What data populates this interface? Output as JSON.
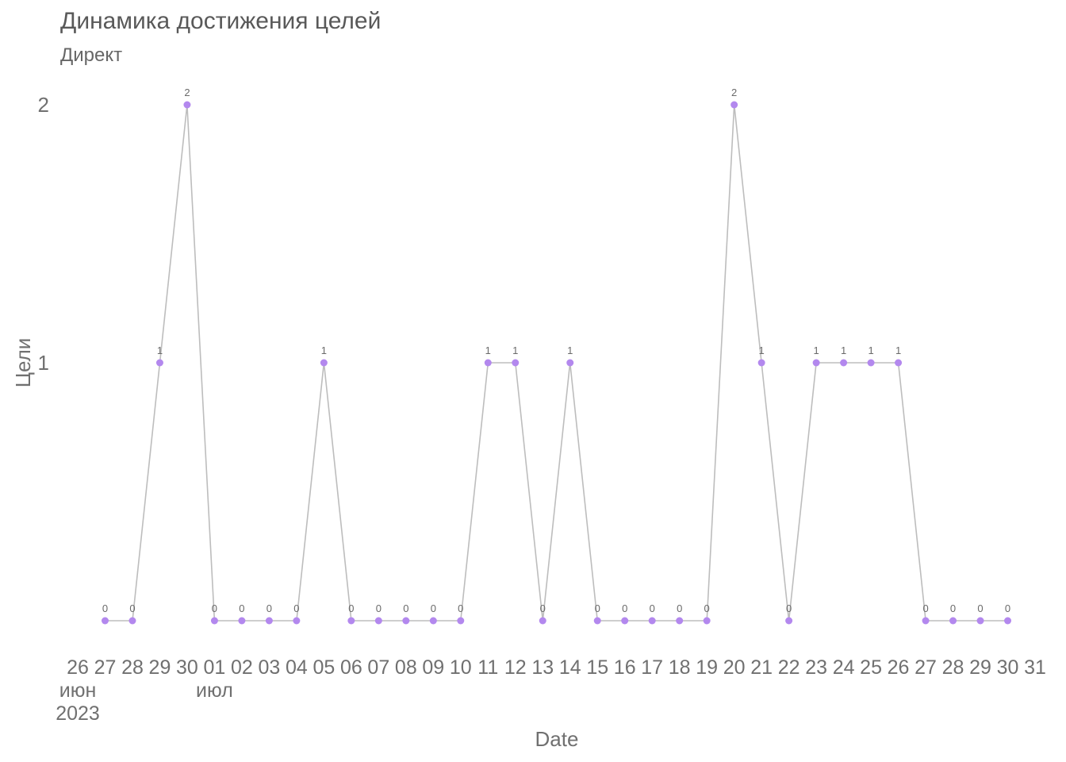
{
  "chart_data": {
    "type": "line",
    "title": "Динамика достижения целей",
    "subtitle": "Директ",
    "xlabel": "Date",
    "ylabel": "Цели",
    "xlim": [
      "2023-06-26",
      "2023-07-31"
    ],
    "ylim": [
      0,
      2
    ],
    "grid": false,
    "line_color": "#bdbdbd",
    "point_color": "#b388ee",
    "x_tick_labels": [
      {
        "date": "2023-06-26",
        "label": "26",
        "sub": [
          "июн",
          "2023"
        ]
      },
      {
        "date": "2023-06-27",
        "label": "27"
      },
      {
        "date": "2023-06-28",
        "label": "28"
      },
      {
        "date": "2023-06-29",
        "label": "29"
      },
      {
        "date": "2023-06-30",
        "label": "30"
      },
      {
        "date": "2023-07-01",
        "label": "01",
        "sub": [
          "июл"
        ]
      },
      {
        "date": "2023-07-02",
        "label": "02"
      },
      {
        "date": "2023-07-03",
        "label": "03"
      },
      {
        "date": "2023-07-04",
        "label": "04"
      },
      {
        "date": "2023-07-05",
        "label": "05"
      },
      {
        "date": "2023-07-06",
        "label": "06"
      },
      {
        "date": "2023-07-07",
        "label": "07"
      },
      {
        "date": "2023-07-08",
        "label": "08"
      },
      {
        "date": "2023-07-09",
        "label": "09"
      },
      {
        "date": "2023-07-10",
        "label": "10"
      },
      {
        "date": "2023-07-11",
        "label": "11"
      },
      {
        "date": "2023-07-12",
        "label": "12"
      },
      {
        "date": "2023-07-13",
        "label": "13"
      },
      {
        "date": "2023-07-14",
        "label": "14"
      },
      {
        "date": "2023-07-15",
        "label": "15"
      },
      {
        "date": "2023-07-16",
        "label": "16"
      },
      {
        "date": "2023-07-17",
        "label": "17"
      },
      {
        "date": "2023-07-18",
        "label": "18"
      },
      {
        "date": "2023-07-19",
        "label": "19"
      },
      {
        "date": "2023-07-20",
        "label": "20"
      },
      {
        "date": "2023-07-21",
        "label": "21"
      },
      {
        "date": "2023-07-22",
        "label": "22"
      },
      {
        "date": "2023-07-23",
        "label": "23"
      },
      {
        "date": "2023-07-24",
        "label": "24"
      },
      {
        "date": "2023-07-25",
        "label": "25"
      },
      {
        "date": "2023-07-26",
        "label": "26"
      },
      {
        "date": "2023-07-27",
        "label": "27"
      },
      {
        "date": "2023-07-28",
        "label": "28"
      },
      {
        "date": "2023-07-29",
        "label": "29"
      },
      {
        "date": "2023-07-30",
        "label": "30"
      },
      {
        "date": "2023-07-31",
        "label": "31"
      }
    ],
    "y_ticks": [
      1,
      2
    ],
    "x": [
      "2023-06-27",
      "2023-06-28",
      "2023-06-29",
      "2023-06-30",
      "2023-07-01",
      "2023-07-02",
      "2023-07-03",
      "2023-07-04",
      "2023-07-05",
      "2023-07-06",
      "2023-07-07",
      "2023-07-08",
      "2023-07-09",
      "2023-07-10",
      "2023-07-11",
      "2023-07-12",
      "2023-07-13",
      "2023-07-14",
      "2023-07-15",
      "2023-07-16",
      "2023-07-17",
      "2023-07-18",
      "2023-07-19",
      "2023-07-20",
      "2023-07-21",
      "2023-07-22",
      "2023-07-23",
      "2023-07-24",
      "2023-07-25",
      "2023-07-26",
      "2023-07-27",
      "2023-07-28",
      "2023-07-29",
      "2023-07-30"
    ],
    "values": [
      0,
      0,
      1,
      2,
      0,
      0,
      0,
      0,
      1,
      0,
      0,
      0,
      0,
      0,
      1,
      1,
      0,
      1,
      0,
      0,
      0,
      0,
      0,
      2,
      1,
      0,
      1,
      1,
      1,
      1,
      0,
      0,
      0,
      0
    ]
  }
}
